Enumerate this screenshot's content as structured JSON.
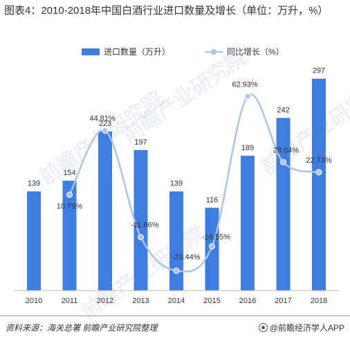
{
  "title": "图表4：2010-2018年中国白酒行业进口数量及增长（单位：万升，%）",
  "footer": {
    "source": "资料来源：海关总署 前瞻产业研究院整理",
    "brand": "@前瞻经济学人APP"
  },
  "watermark": "前瞻产业研究院",
  "colors": {
    "bar": "#3f7ee0",
    "line": "#a9c3ea",
    "marker": "#a9c3ea"
  },
  "chart_data": {
    "type": "bar",
    "title": "图表4：2010-2018年中国白酒行业进口数量及增长（单位：万升，%）",
    "categories": [
      "2010",
      "2011",
      "2012",
      "2013",
      "2014",
      "2015",
      "2016",
      "2017",
      "2018"
    ],
    "series": [
      {
        "name": "进口数量（万升）",
        "type": "bar",
        "values": [
          139,
          154,
          223,
          197,
          139,
          116,
          189,
          242,
          297
        ],
        "labels": [
          "139",
          "154",
          "223",
          "197",
          "139",
          "116",
          "189",
          "242",
          "297"
        ]
      },
      {
        "name": "同比增长（%）",
        "type": "line",
        "smooth": true,
        "secondary_axis": true,
        "values": [
          null,
          10.79,
          44.81,
          -11.66,
          -29.44,
          -16.55,
          62.93,
          28.04,
          22.73
        ],
        "labels": [
          "",
          "10.79%",
          "44.81%",
          "-11.66%",
          "-29.44%",
          "-16.55%",
          "62.93%",
          "28.04%",
          "22.73%"
        ]
      }
    ],
    "ylim": [
      0,
      320
    ],
    "y2lim": [
      -40,
      70
    ],
    "legend_position": "top-center",
    "grid": false
  }
}
